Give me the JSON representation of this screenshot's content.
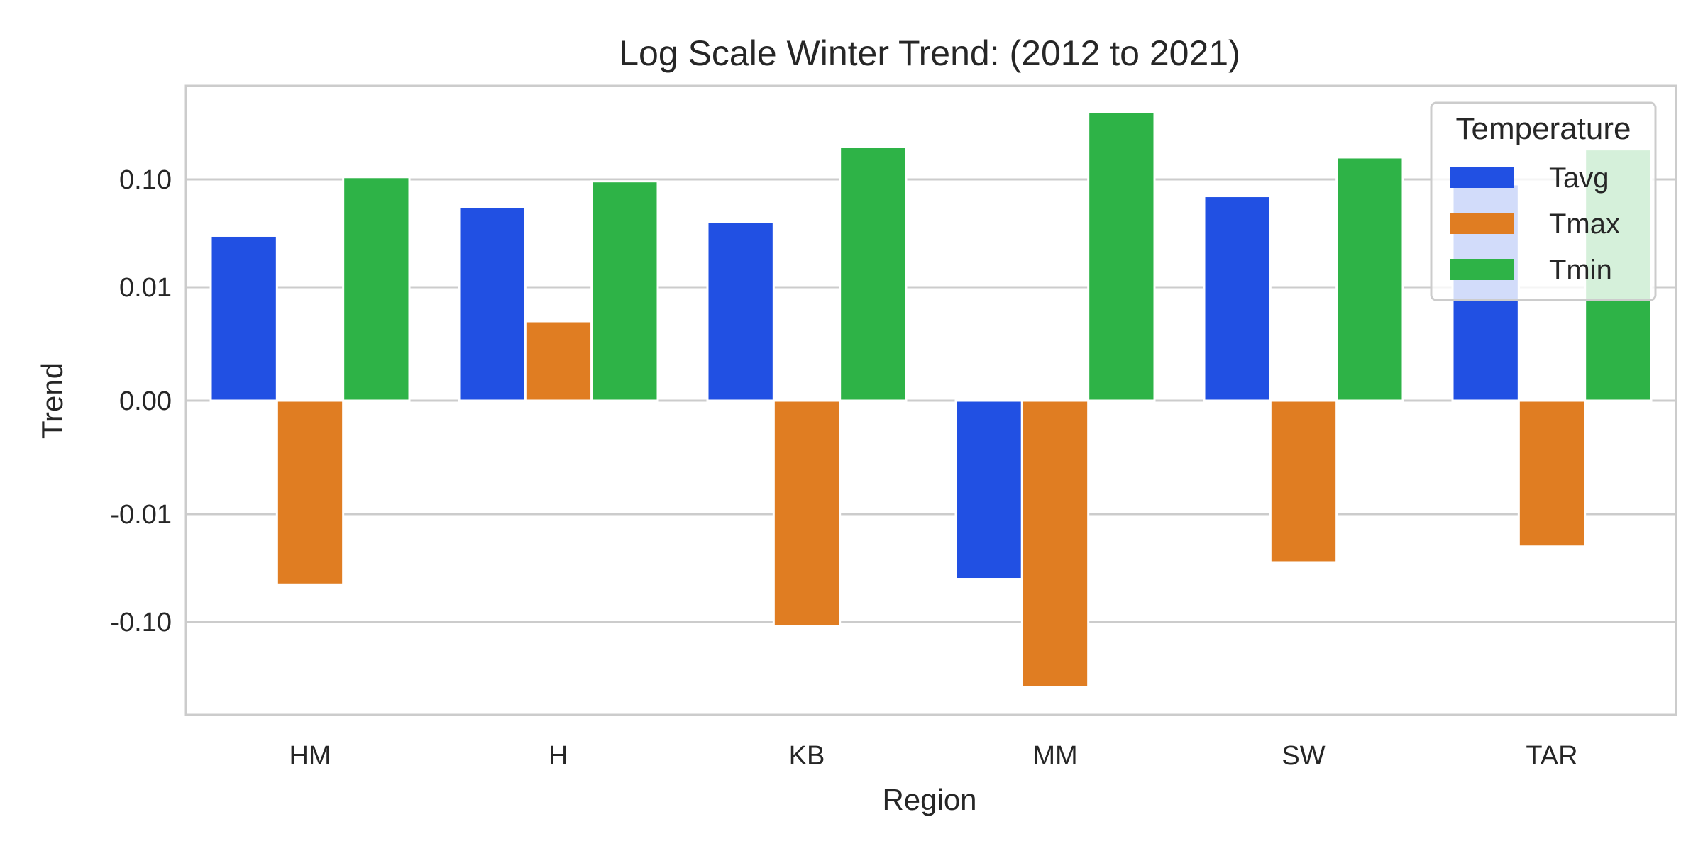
{
  "chart_data": {
    "type": "bar",
    "title": "Log Scale Winter Trend: (2012 to 2021)",
    "xlabel": "Region",
    "ylabel": "Trend",
    "categories": [
      "HM",
      "H",
      "KB",
      "MM",
      "SW",
      "TAR"
    ],
    "y_scale": "symlog",
    "y_ticks": [
      {
        "value": 0.1,
        "label": "0.10"
      },
      {
        "value": 0.01,
        "label": "0.01"
      },
      {
        "value": 0,
        "label": "0.00"
      },
      {
        "value": -0.01,
        "label": "-0.01"
      },
      {
        "value": -0.1,
        "label": "-0.10"
      }
    ],
    "grid": true,
    "legend": {
      "title": "Temperature",
      "position": "top-right"
    },
    "series": [
      {
        "name": "Tavg",
        "color": "#2150e3",
        "values": [
          0.03,
          0.055,
          0.04,
          -0.04,
          0.07,
          0.09
        ]
      },
      {
        "name": "Tmax",
        "color": "#e07d22",
        "values": [
          -0.045,
          0.007,
          -0.11,
          -0.4,
          -0.028,
          -0.02
        ]
      },
      {
        "name": "Tmin",
        "color": "#2eb347",
        "values": [
          0.105,
          0.096,
          0.2,
          0.42,
          0.16,
          0.19
        ]
      }
    ]
  }
}
